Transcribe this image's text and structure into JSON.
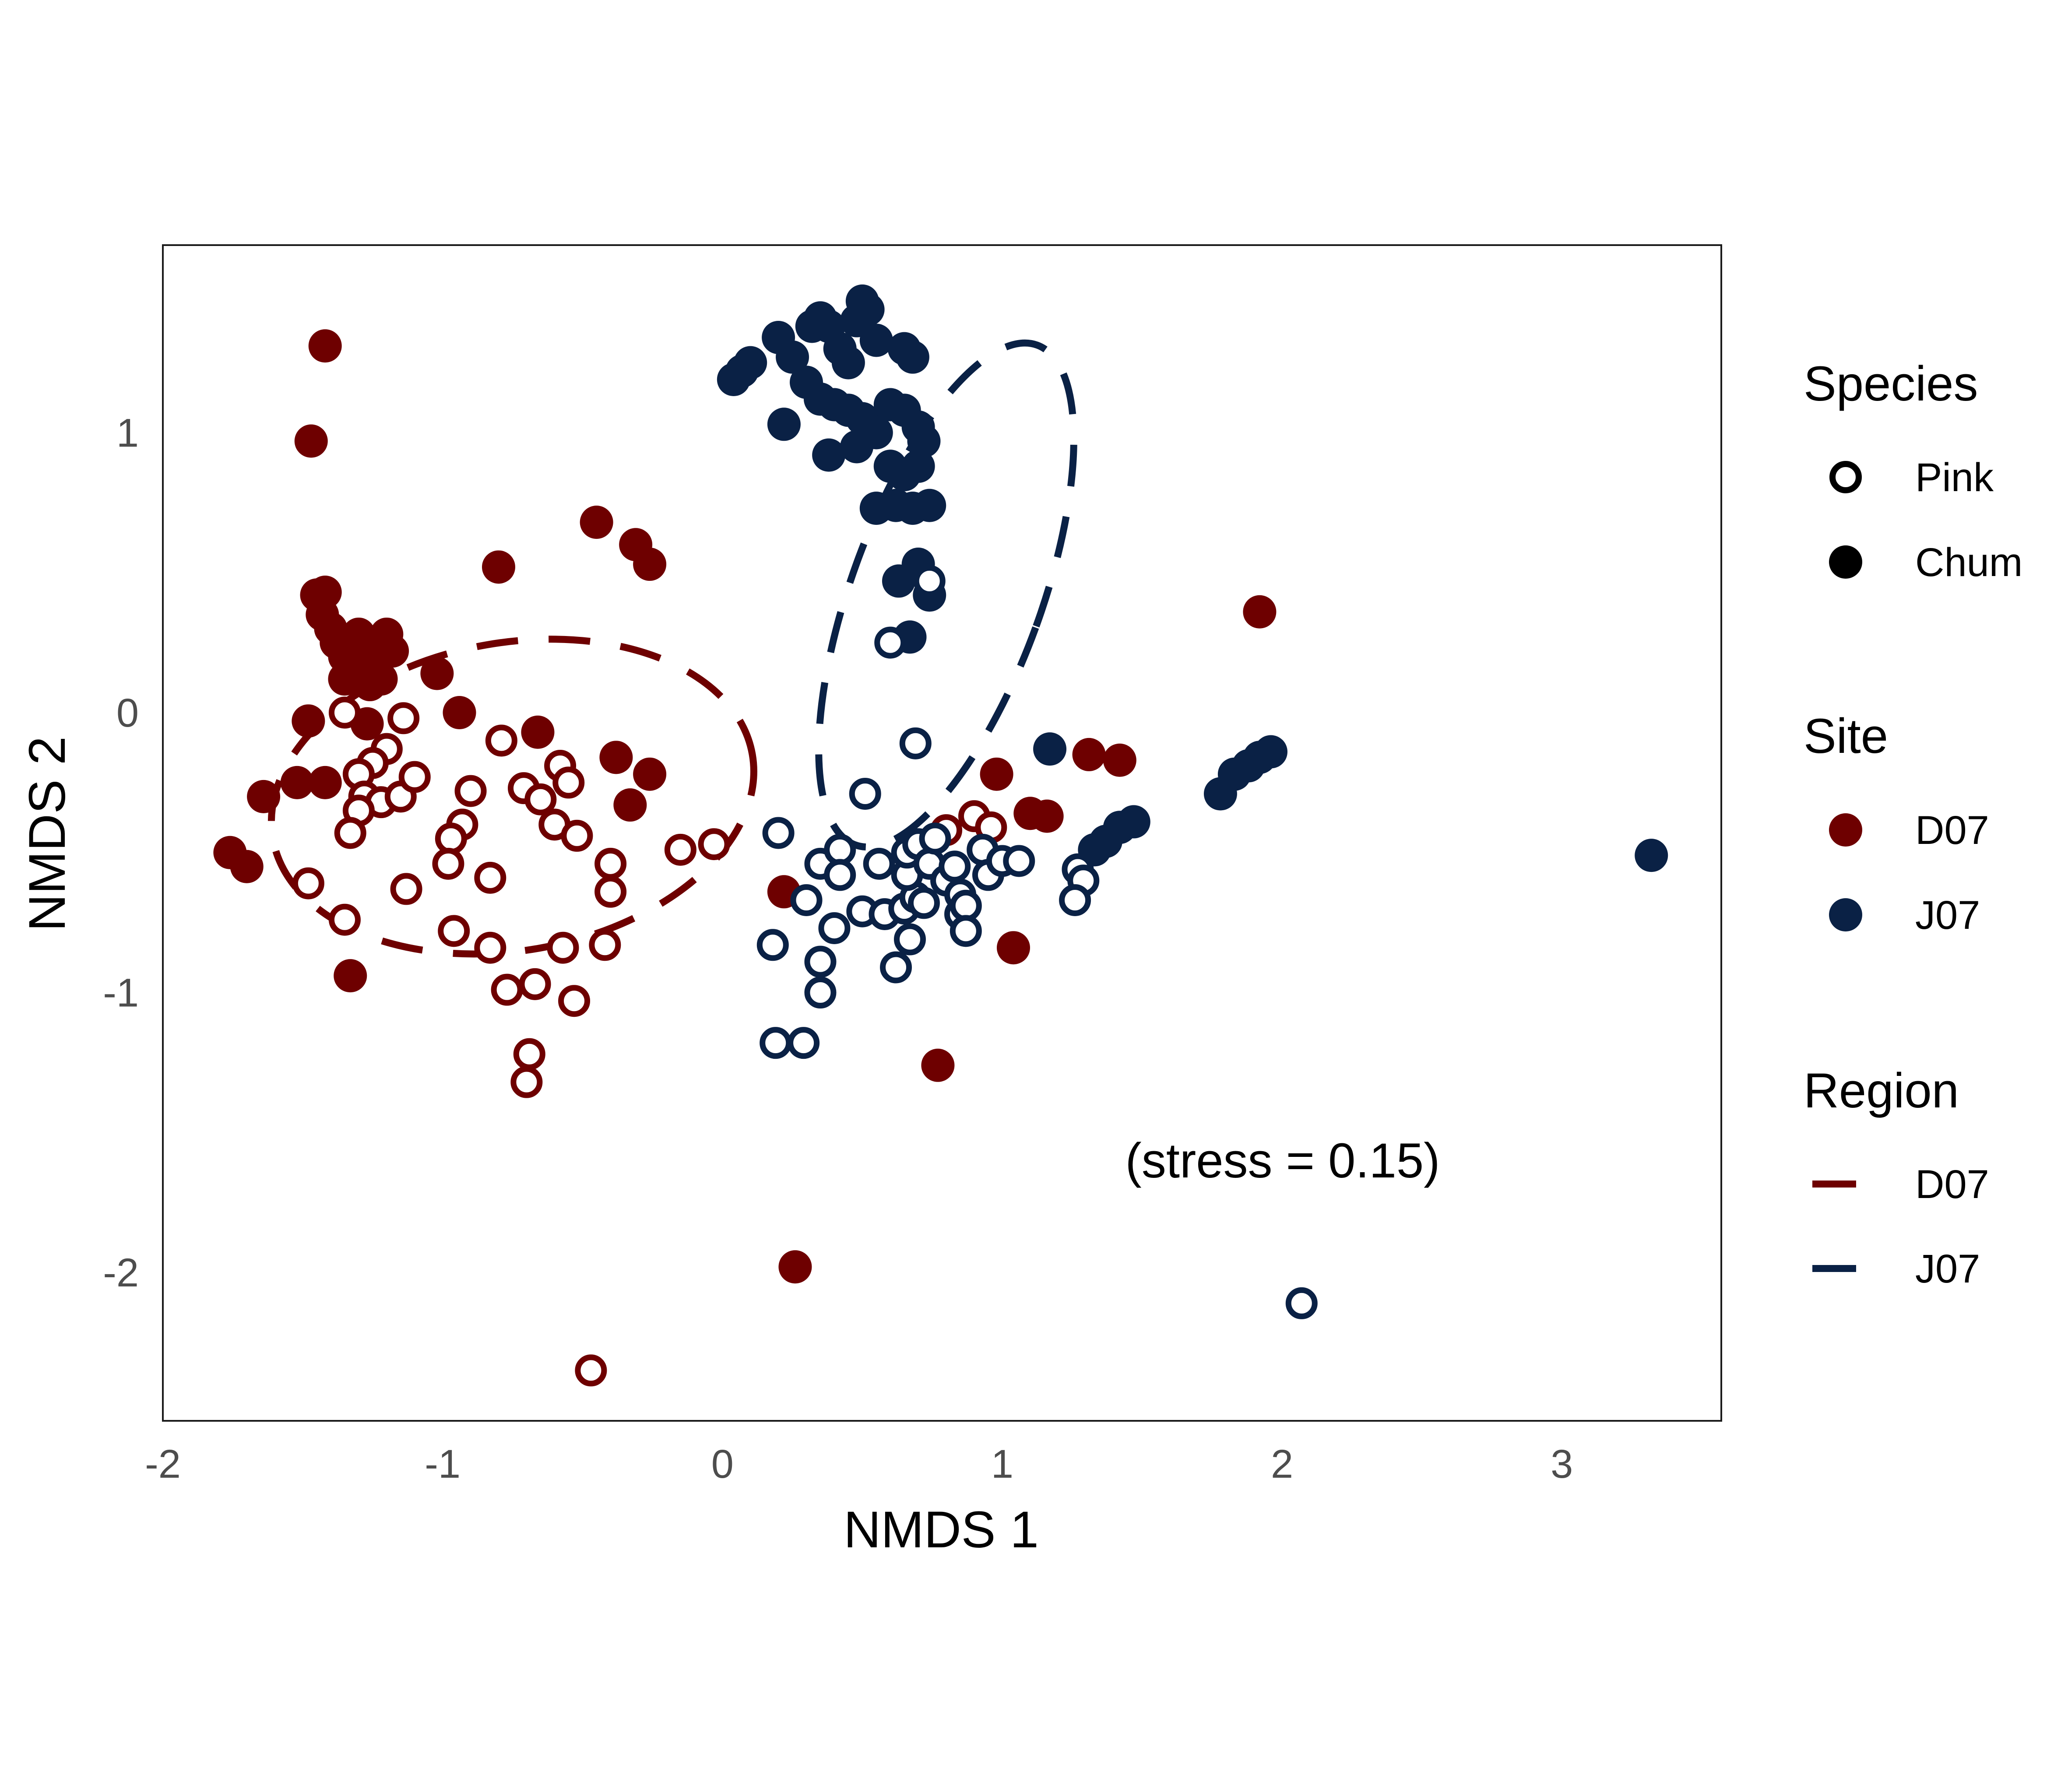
{
  "chart_data": {
    "type": "scatter",
    "xlabel": "NMDS 1",
    "ylabel": "NMDS 2",
    "xlim": [
      -2,
      3.57
    ],
    "ylim": [
      -2.53,
      1.67
    ],
    "x_ticks": [
      "-2",
      "-1",
      "0",
      "1",
      "2",
      "3"
    ],
    "y_ticks": [
      "-2",
      "-1",
      "0",
      "1"
    ],
    "grid": false,
    "annotation": "(stress = 0.15)",
    "colors": {
      "D07": "#6e0000",
      "J07": "#0a2145"
    },
    "legend": {
      "placement": "right",
      "species": {
        "title": "Species",
        "items": [
          "Pink",
          "Chum"
        ]
      },
      "site": {
        "title": "Site",
        "items": [
          "D07",
          "J07"
        ]
      },
      "region": {
        "title": "Region",
        "items": [
          "D07",
          "J07"
        ]
      }
    },
    "ellipses": [
      {
        "region": "D07",
        "cx": -0.75,
        "cy": -0.3,
        "rx": 0.87,
        "ry": 0.55,
        "angle": -10
      },
      {
        "region": "J07",
        "cx": 0.8,
        "cy": 0.42,
        "rx": 0.34,
        "ry": 0.95,
        "angle": 20
      }
    ],
    "series": [
      {
        "site": "D07",
        "species": "Chum",
        "points": [
          [
            -1.42,
            1.31
          ],
          [
            -1.47,
            0.97
          ],
          [
            -1.45,
            0.42
          ],
          [
            -1.42,
            0.43
          ],
          [
            -1.43,
            0.35
          ],
          [
            -1.4,
            0.3
          ],
          [
            -1.38,
            0.25
          ],
          [
            -1.35,
            0.2
          ],
          [
            -1.32,
            0.22
          ],
          [
            -1.3,
            0.28
          ],
          [
            -1.28,
            0.17
          ],
          [
            -1.25,
            0.25
          ],
          [
            -1.22,
            0.12
          ],
          [
            -1.2,
            0.28
          ],
          [
            -1.18,
            0.22
          ],
          [
            -1.26,
            0.1
          ],
          [
            -1.35,
            0.12
          ],
          [
            -1.48,
            -0.03
          ],
          [
            -1.42,
            -0.25
          ],
          [
            -1.52,
            -0.25
          ],
          [
            -1.64,
            -0.3
          ],
          [
            -1.76,
            -0.5
          ],
          [
            -1.7,
            -0.55
          ],
          [
            -1.27,
            -0.04
          ],
          [
            -1.02,
            0.14
          ],
          [
            -0.94,
            0.0
          ],
          [
            -0.8,
            0.52
          ],
          [
            -0.66,
            -0.07
          ],
          [
            -0.45,
            0.68
          ],
          [
            -0.31,
            0.6
          ],
          [
            -0.26,
            0.53
          ],
          [
            -0.38,
            -0.16
          ],
          [
            -0.26,
            -0.22
          ],
          [
            -0.33,
            -0.33
          ],
          [
            -1.33,
            -0.94
          ],
          [
            0.22,
            -0.64
          ],
          [
            0.77,
            -1.26
          ],
          [
            0.26,
            -1.98
          ],
          [
            0.98,
            -0.22
          ],
          [
            1.04,
            -0.84
          ],
          [
            1.1,
            -0.36
          ],
          [
            1.16,
            -0.37
          ],
          [
            1.31,
            -0.15
          ],
          [
            1.42,
            -0.17
          ],
          [
            1.92,
            0.36
          ]
        ]
      },
      {
        "site": "J07",
        "species": "Chum",
        "points": [
          [
            0.04,
            1.19
          ],
          [
            0.07,
            1.22
          ],
          [
            0.1,
            1.25
          ],
          [
            0.2,
            1.34
          ],
          [
            0.25,
            1.27
          ],
          [
            0.32,
            1.38
          ],
          [
            0.35,
            1.41
          ],
          [
            0.38,
            1.38
          ],
          [
            0.42,
            1.3
          ],
          [
            0.45,
            1.25
          ],
          [
            0.48,
            1.4
          ],
          [
            0.5,
            1.47
          ],
          [
            0.52,
            1.44
          ],
          [
            0.55,
            1.33
          ],
          [
            0.65,
            1.3
          ],
          [
            0.68,
            1.27
          ],
          [
            0.3,
            1.18
          ],
          [
            0.35,
            1.12
          ],
          [
            0.4,
            1.1
          ],
          [
            0.45,
            1.08
          ],
          [
            0.5,
            1.05
          ],
          [
            0.55,
            1.0
          ],
          [
            0.6,
            1.1
          ],
          [
            0.65,
            1.08
          ],
          [
            0.7,
            1.02
          ],
          [
            0.72,
            0.97
          ],
          [
            0.22,
            1.03
          ],
          [
            0.38,
            0.92
          ],
          [
            0.48,
            0.95
          ],
          [
            0.6,
            0.88
          ],
          [
            0.65,
            0.85
          ],
          [
            0.7,
            0.88
          ],
          [
            0.55,
            0.73
          ],
          [
            0.62,
            0.74
          ],
          [
            0.68,
            0.73
          ],
          [
            0.74,
            0.74
          ],
          [
            0.63,
            0.47
          ],
          [
            0.7,
            0.53
          ],
          [
            0.74,
            0.42
          ],
          [
            0.67,
            0.27
          ],
          [
            1.17,
            -0.13
          ],
          [
            1.78,
            -0.29
          ],
          [
            1.83,
            -0.22
          ],
          [
            1.88,
            -0.19
          ],
          [
            1.92,
            -0.16
          ],
          [
            1.96,
            -0.14
          ],
          [
            1.47,
            -0.39
          ],
          [
            1.42,
            -0.41
          ],
          [
            1.37,
            -0.46
          ],
          [
            1.33,
            -0.49
          ],
          [
            3.32,
            -0.51
          ]
        ]
      },
      {
        "site": "D07",
        "species": "Pink",
        "points": [
          [
            -1.35,
            0.0
          ],
          [
            -1.2,
            -0.13
          ],
          [
            -1.14,
            -0.02
          ],
          [
            -1.25,
            -0.18
          ],
          [
            -1.3,
            -0.22
          ],
          [
            -1.28,
            -0.3
          ],
          [
            -1.22,
            -0.32
          ],
          [
            -1.15,
            -0.3
          ],
          [
            -1.1,
            -0.23
          ],
          [
            -1.3,
            -0.35
          ],
          [
            -1.33,
            -0.43
          ],
          [
            -1.48,
            -0.61
          ],
          [
            -1.13,
            -0.63
          ],
          [
            -1.35,
            -0.74
          ],
          [
            -0.79,
            -0.1
          ],
          [
            -0.9,
            -0.28
          ],
          [
            -0.93,
            -0.4
          ],
          [
            -0.97,
            -0.45
          ],
          [
            -0.98,
            -0.54
          ],
          [
            -0.83,
            -0.59
          ],
          [
            -0.96,
            -0.78
          ],
          [
            -0.83,
            -0.84
          ],
          [
            -0.71,
            -0.27
          ],
          [
            -0.65,
            -0.31
          ],
          [
            -0.58,
            -0.19
          ],
          [
            -0.55,
            -0.25
          ],
          [
            -0.6,
            -0.4
          ],
          [
            -0.52,
            -0.44
          ],
          [
            -0.4,
            -0.54
          ],
          [
            -0.4,
            -0.64
          ],
          [
            -0.42,
            -0.83
          ],
          [
            -0.57,
            -0.84
          ],
          [
            -0.67,
            -0.97
          ],
          [
            -0.77,
            -0.99
          ],
          [
            -0.53,
            -1.03
          ],
          [
            -0.69,
            -1.22
          ],
          [
            -0.7,
            -1.32
          ],
          [
            -0.15,
            -0.49
          ],
          [
            -0.03,
            -0.47
          ],
          [
            -0.47,
            -2.35
          ],
          [
            0.8,
            -0.42
          ],
          [
            0.9,
            -0.37
          ],
          [
            0.96,
            -0.41
          ]
        ]
      },
      {
        "site": "J07",
        "species": "Pink",
        "points": [
          [
            0.74,
            0.47
          ],
          [
            0.6,
            0.25
          ],
          [
            0.69,
            -0.11
          ],
          [
            0.51,
            -0.29
          ],
          [
            0.2,
            -0.43
          ],
          [
            0.35,
            -0.54
          ],
          [
            0.42,
            -0.49
          ],
          [
            0.42,
            -0.58
          ],
          [
            0.3,
            -0.67
          ],
          [
            0.4,
            -0.77
          ],
          [
            0.35,
            -0.89
          ],
          [
            0.35,
            -1.0
          ],
          [
            0.18,
            -0.83
          ],
          [
            0.19,
            -1.18
          ],
          [
            0.29,
            -1.18
          ],
          [
            0.56,
            -0.54
          ],
          [
            0.5,
            -0.71
          ],
          [
            0.58,
            -0.72
          ],
          [
            0.65,
            -0.7
          ],
          [
            0.62,
            -0.91
          ],
          [
            0.67,
            -0.81
          ],
          [
            0.69,
            -0.66
          ],
          [
            0.72,
            -0.68
          ],
          [
            0.66,
            -0.58
          ],
          [
            0.66,
            -0.5
          ],
          [
            0.7,
            -0.47
          ],
          [
            0.74,
            -0.54
          ],
          [
            0.76,
            -0.45
          ],
          [
            0.8,
            -0.6
          ],
          [
            0.83,
            -0.55
          ],
          [
            0.85,
            -0.65
          ],
          [
            0.85,
            -0.72
          ],
          [
            0.87,
            -0.69
          ],
          [
            0.87,
            -0.78
          ],
          [
            0.93,
            -0.49
          ],
          [
            0.95,
            -0.58
          ],
          [
            1.0,
            -0.53
          ],
          [
            1.06,
            -0.53
          ],
          [
            1.27,
            -0.56
          ],
          [
            1.29,
            -0.6
          ],
          [
            1.26,
            -0.67
          ],
          [
            2.07,
            -2.11
          ]
        ]
      }
    ]
  }
}
